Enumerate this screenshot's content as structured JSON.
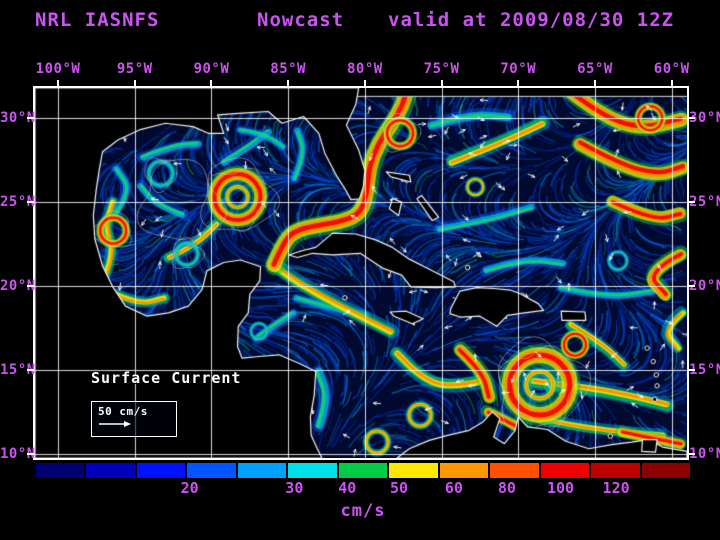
{
  "header": {
    "model": "NRL IASNFS",
    "product": "Nowcast",
    "valid": "valid at 2009/08/30 12Z",
    "text_color": "#cb54f0"
  },
  "map": {
    "annotation": "Surface Current",
    "scale_label": "50 cm/s",
    "extent": {
      "lon_min": -101.5,
      "lon_max": -59.0,
      "lat_min": 9.75,
      "lat_max": 31.8
    },
    "lon_ticks": [
      {
        "label": "100°W",
        "lon": -100
      },
      {
        "label": "95°W",
        "lon": -95
      },
      {
        "label": "90°W",
        "lon": -90
      },
      {
        "label": "85°W",
        "lon": -85
      },
      {
        "label": "80°W",
        "lon": -80
      },
      {
        "label": "75°W",
        "lon": -75
      },
      {
        "label": "70°W",
        "lon": -70
      },
      {
        "label": "65°W",
        "lon": -65
      },
      {
        "label": "60°W",
        "lon": -60
      }
    ],
    "lat_ticks": [
      {
        "label": "30°N",
        "lat": 30
      },
      {
        "label": "25°N",
        "lat": 25
      },
      {
        "label": "20°N",
        "lat": 20
      },
      {
        "label": "15°N",
        "lat": 15
      },
      {
        "label": "10°N",
        "lat": 10
      }
    ],
    "colors": {
      "ocean": "#000a30",
      "land": "#000000",
      "coast": "#f2f2f2",
      "grid": "#ffffff"
    }
  },
  "colorbar": {
    "unit": "cm/s",
    "segments": [
      "#000070",
      "#0000b8",
      "#0010ff",
      "#0055ff",
      "#00a0ff",
      "#00e0e8",
      "#00cc44",
      "#fce800",
      "#ff9800",
      "#ff5000",
      "#ee0000",
      "#bb0000",
      "#8b0000"
    ],
    "tick_labels": [
      {
        "label": "20",
        "pct": 23.5
      },
      {
        "label": "30",
        "pct": 39.5
      },
      {
        "label": "40",
        "pct": 47.6
      },
      {
        "label": "50",
        "pct": 55.5
      },
      {
        "label": "60",
        "pct": 63.9
      },
      {
        "label": "80",
        "pct": 72.0
      },
      {
        "label": "100",
        "pct": 80.2
      },
      {
        "label": "120",
        "pct": 88.7
      }
    ]
  }
}
